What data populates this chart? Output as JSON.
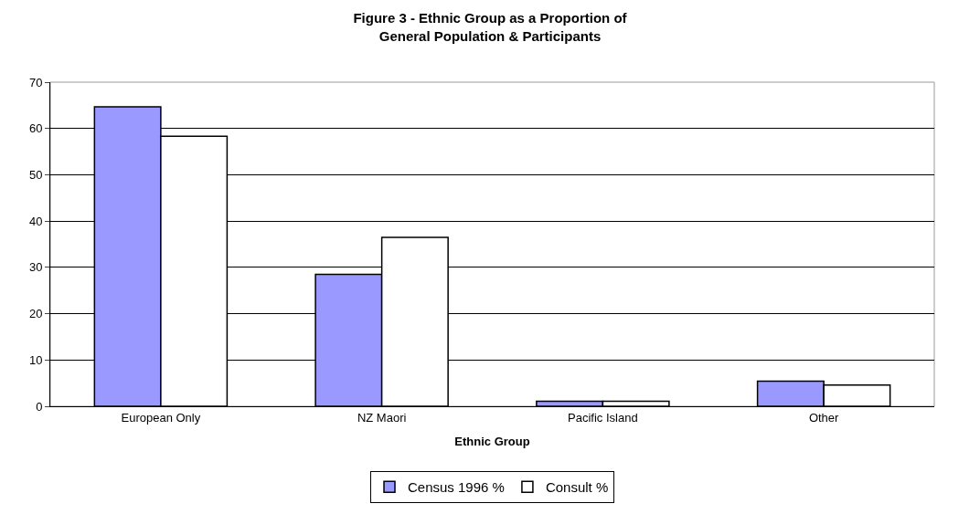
{
  "chart_data": {
    "type": "bar",
    "title": "Figure 3 - Ethnic Group as a Proportion of General Population & Participants",
    "xlabel": "Ethnic Group",
    "categories": [
      "European Only",
      "NZ Maori",
      "Pacific Island",
      "Other"
    ],
    "series": [
      {
        "name": "Census 1996 %",
        "color": "#9999ff",
        "values": [
          64.7,
          28.5,
          1.1,
          5.4
        ]
      },
      {
        "name": "Consult %",
        "color": "#ffffff",
        "values": [
          58.3,
          36.5,
          1.1,
          4.6
        ]
      }
    ],
    "ylim": [
      0,
      70
    ],
    "yticks": [
      0,
      10,
      20,
      30,
      40,
      50,
      60,
      70
    ],
    "grid": "y",
    "legend": "bottom"
  }
}
